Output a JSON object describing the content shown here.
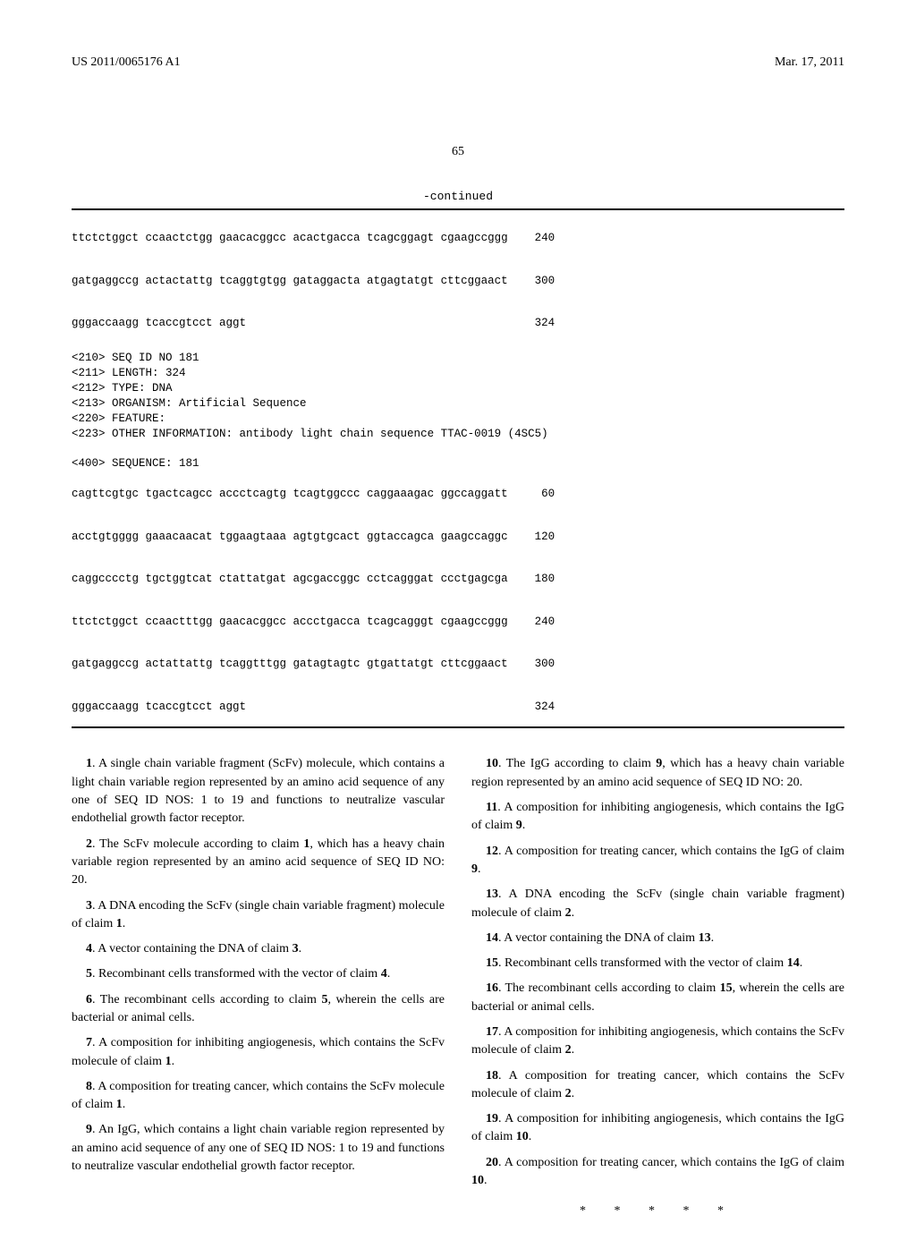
{
  "header": {
    "pub_number": "US 2011/0065176 A1",
    "pub_date": "Mar. 17, 2011"
  },
  "page_number": "65",
  "continued_label": "-continued",
  "seq_block_1": {
    "lines": [
      {
        "text": "ttctctggct ccaactctgg gaacacggcc acactgacca tcagcggagt cgaagccggg",
        "num": "240"
      },
      {
        "text": "gatgaggccg actactattg tcaggtgtgg gataggacta atgagtatgt cttcggaact",
        "num": "300"
      },
      {
        "text": "gggaccaagg tcaccgtcct aggt",
        "num": "324"
      }
    ]
  },
  "seq_header": [
    "<210> SEQ ID NO 181",
    "<211> LENGTH: 324",
    "<212> TYPE: DNA",
    "<213> ORGANISM: Artificial Sequence",
    "<220> FEATURE:",
    "<223> OTHER INFORMATION: antibody light chain sequence TTAC-0019 (4SC5)",
    "",
    "<400> SEQUENCE: 181"
  ],
  "seq_block_2": {
    "lines": [
      {
        "text": "cagttcgtgc tgactcagcc accctcagtg tcagtggccc caggaaagac ggccaggatt",
        "num": "60"
      },
      {
        "text": "acctgtgggg gaaacaacat tggaagtaaa agtgtgcact ggtaccagca gaagccaggc",
        "num": "120"
      },
      {
        "text": "caggcccctg tgctggtcat ctattatgat agcgaccggc cctcagggat ccctgagcga",
        "num": "180"
      },
      {
        "text": "ttctctggct ccaactttgg gaacacggcc accctgacca tcagcagggt cgaagccggg",
        "num": "240"
      },
      {
        "text": "gatgaggccg actattattg tcaggtttgg gatagtagtc gtgattatgt cttcggaact",
        "num": "300"
      },
      {
        "text": "gggaccaagg tcaccgtcct aggt",
        "num": "324"
      }
    ]
  },
  "claims_left": [
    {
      "n": "1",
      "text": ". A single chain variable fragment (ScFv) molecule, which contains a light chain variable region represented by an amino acid sequence of any one of SEQ ID NOS: 1 to 19 and functions to neutralize vascular endothelial growth factor receptor."
    },
    {
      "n": "2",
      "text": ". The ScFv molecule according to claim 1, which has a heavy chain variable region represented by an amino acid sequence of SEQ ID NO: 20."
    },
    {
      "n": "3",
      "text": ". A DNA encoding the ScFv (single chain variable fragment) molecule of claim 1."
    },
    {
      "n": "4",
      "text": ". A vector containing the DNA of claim 3."
    },
    {
      "n": "5",
      "text": ". Recombinant cells transformed with the vector of claim 4."
    },
    {
      "n": "6",
      "text": ". The recombinant cells according to claim 5, wherein the cells are bacterial or animal cells."
    },
    {
      "n": "7",
      "text": ". A composition for inhibiting angiogenesis, which contains the ScFv molecule of claim 1."
    },
    {
      "n": "8",
      "text": ". A composition for treating cancer, which contains the ScFv molecule of claim 1."
    },
    {
      "n": "9",
      "text": ". An IgG, which contains a light chain variable region represented by an amino acid sequence of any one of SEQ ID NOS: 1 to 19 and functions to neutralize vascular endothelial growth factor receptor."
    }
  ],
  "claims_right": [
    {
      "n": "10",
      "text": ". The IgG according to claim 9, which has a heavy chain variable region represented by an amino acid sequence of SEQ ID NO: 20."
    },
    {
      "n": "11",
      "text": ". A composition for inhibiting angiogenesis, which contains the IgG of claim 9."
    },
    {
      "n": "12",
      "text": ". A composition for treating cancer, which contains the IgG of claim 9."
    },
    {
      "n": "13",
      "text": ". A DNA encoding the ScFv (single chain variable fragment) molecule of claim 2."
    },
    {
      "n": "14",
      "text": ". A vector containing the DNA of claim 13."
    },
    {
      "n": "15",
      "text": ". Recombinant cells transformed with the vector of claim 14."
    },
    {
      "n": "16",
      "text": ". The recombinant cells according to claim 15, wherein the cells are bacterial or animal cells."
    },
    {
      "n": "17",
      "text": ". A composition for inhibiting angiogenesis, which contains the ScFv molecule of claim 2."
    },
    {
      "n": "18",
      "text": ". A composition for treating cancer, which contains the ScFv molecule of claim 2."
    },
    {
      "n": "19",
      "text": ". A composition for inhibiting angiogenesis, which contains the IgG of claim 10."
    },
    {
      "n": "20",
      "text": ". A composition for treating cancer, which contains the IgG of claim 10."
    }
  ],
  "stars": "* * * * *"
}
